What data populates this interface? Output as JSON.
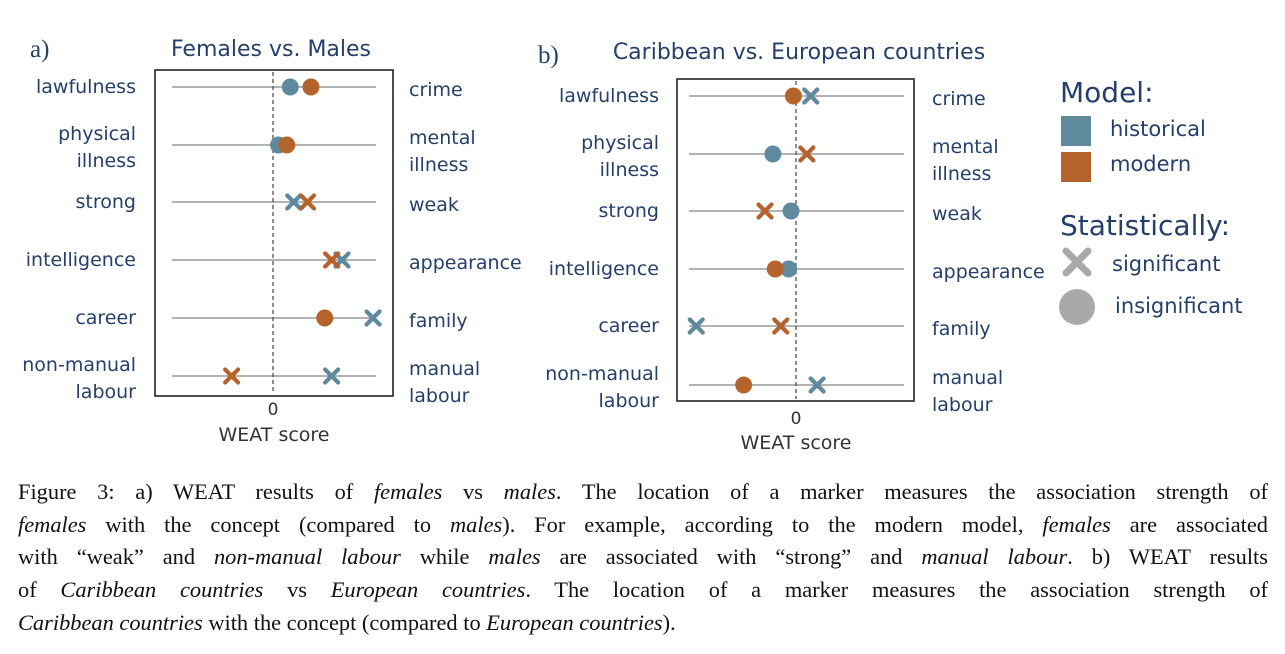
{
  "colors": {
    "historical": "#5f8a9e",
    "modern": "#b5632c",
    "label_text": "#253f6a",
    "legend_marker": "#a9a9a9"
  },
  "marker_encoding": {
    "cross": "significant",
    "circle": "insignificant"
  },
  "chart_data": [
    {
      "type": "scatter",
      "panel": "a)",
      "title": "Females vs. Males",
      "xlabel": "WEAT score",
      "xticks": [
        "0"
      ],
      "xlim": [
        -1.8,
        1.6
      ],
      "rows": [
        {
          "left": [
            "lawfulness"
          ],
          "right": [
            "crime"
          ]
        },
        {
          "left": [
            "physical",
            "illness"
          ],
          "right": [
            "mental",
            "illness"
          ]
        },
        {
          "left": [
            "strong"
          ],
          "right": [
            "weak"
          ]
        },
        {
          "left": [
            "intelligence"
          ],
          "right": [
            "appearance"
          ]
        },
        {
          "left": [
            "career"
          ],
          "right": [
            "family"
          ]
        },
        {
          "left": [
            "non-manual",
            "labour"
          ],
          "right": [
            "manual",
            "labour"
          ]
        }
      ],
      "series": [
        {
          "name": "historical",
          "points": [
            {
              "row": 0,
              "value": 0.25,
              "significance": "insignificant"
            },
            {
              "row": 1,
              "value": 0.08,
              "significance": "insignificant"
            },
            {
              "row": 2,
              "value": 0.3,
              "significance": "significant"
            },
            {
              "row": 3,
              "value": 1.0,
              "significance": "significant"
            },
            {
              "row": 4,
              "value": 1.45,
              "significance": "significant"
            },
            {
              "row": 5,
              "value": 0.85,
              "significance": "significant"
            }
          ]
        },
        {
          "name": "modern",
          "points": [
            {
              "row": 0,
              "value": 0.55,
              "significance": "insignificant"
            },
            {
              "row": 1,
              "value": 0.2,
              "significance": "insignificant"
            },
            {
              "row": 2,
              "value": 0.5,
              "significance": "significant"
            },
            {
              "row": 3,
              "value": 0.85,
              "significance": "significant"
            },
            {
              "row": 4,
              "value": 0.75,
              "significance": "insignificant"
            },
            {
              "row": 5,
              "value": -0.6,
              "significance": "significant"
            }
          ]
        }
      ]
    },
    {
      "type": "scatter",
      "panel": "b)",
      "title": "Caribbean vs. European countries",
      "xlabel": "WEAT score",
      "xticks": [
        "0"
      ],
      "xlim": [
        -1.5,
        1.5
      ],
      "rows": [
        {
          "left": [
            "lawfulness"
          ],
          "right": [
            "crime"
          ]
        },
        {
          "left": [
            "physical",
            "illness"
          ],
          "right": [
            "mental",
            "illness"
          ]
        },
        {
          "left": [
            "strong"
          ],
          "right": [
            "weak"
          ]
        },
        {
          "left": [
            "intelligence"
          ],
          "right": [
            "appearance"
          ]
        },
        {
          "left": [
            "career"
          ],
          "right": [
            "family"
          ]
        },
        {
          "left": [
            "non-manual",
            "labour"
          ],
          "right": [
            "manual",
            "labour"
          ]
        }
      ],
      "series": [
        {
          "name": "historical",
          "points": [
            {
              "row": 0,
              "value": 0.2,
              "significance": "significant"
            },
            {
              "row": 1,
              "value": -0.28,
              "significance": "insignificant"
            },
            {
              "row": 2,
              "value": -0.05,
              "significance": "insignificant"
            },
            {
              "row": 3,
              "value": -0.08,
              "significance": "insignificant"
            },
            {
              "row": 4,
              "value": -1.25,
              "significance": "significant"
            },
            {
              "row": 5,
              "value": 0.28,
              "significance": "significant"
            }
          ]
        },
        {
          "name": "modern",
          "points": [
            {
              "row": 0,
              "value": -0.02,
              "significance": "insignificant"
            },
            {
              "row": 1,
              "value": 0.15,
              "significance": "significant"
            },
            {
              "row": 2,
              "value": -0.38,
              "significance": "significant"
            },
            {
              "row": 3,
              "value": -0.25,
              "significance": "insignificant"
            },
            {
              "row": 4,
              "value": -0.18,
              "significance": "significant"
            },
            {
              "row": 5,
              "value": -0.65,
              "significance": "insignificant"
            }
          ]
        }
      ]
    }
  ],
  "legend": {
    "model_title": "Model:",
    "model_items": [
      "historical",
      "modern"
    ],
    "stat_title": "Statistically:",
    "stat_items": [
      "significant",
      "insignificant"
    ]
  },
  "caption": [
    [
      {
        "t": "Figure 3: a) WEAT results of "
      },
      {
        "t": "females",
        "i": true
      },
      {
        "t": " vs "
      },
      {
        "t": "males",
        "i": true
      },
      {
        "t": ".  The location of a marker measures the association strength of"
      }
    ],
    [
      {
        "t": "females",
        "i": true
      },
      {
        "t": " with the concept (compared to "
      },
      {
        "t": "males",
        "i": true
      },
      {
        "t": "). For example, according to the modern model, "
      },
      {
        "t": "females",
        "i": true
      },
      {
        "t": " are associated"
      }
    ],
    [
      {
        "t": "with “weak” and "
      },
      {
        "t": "non-manual labour",
        "i": true
      },
      {
        "t": " while "
      },
      {
        "t": "males",
        "i": true
      },
      {
        "t": " are associated with “strong” and "
      },
      {
        "t": "manual labour",
        "i": true
      },
      {
        "t": ". b) WEAT results"
      }
    ],
    [
      {
        "t": "of "
      },
      {
        "t": "Caribbean countries",
        "i": true
      },
      {
        "t": " vs "
      },
      {
        "t": "European countries",
        "i": true
      },
      {
        "t": ".  The location of a marker measures the association strength of"
      }
    ],
    [
      {
        "t": "Caribbean countries",
        "i": true
      },
      {
        "t": " with the concept (compared to "
      },
      {
        "t": "European countries",
        "i": true
      },
      {
        "t": ")."
      }
    ]
  ]
}
